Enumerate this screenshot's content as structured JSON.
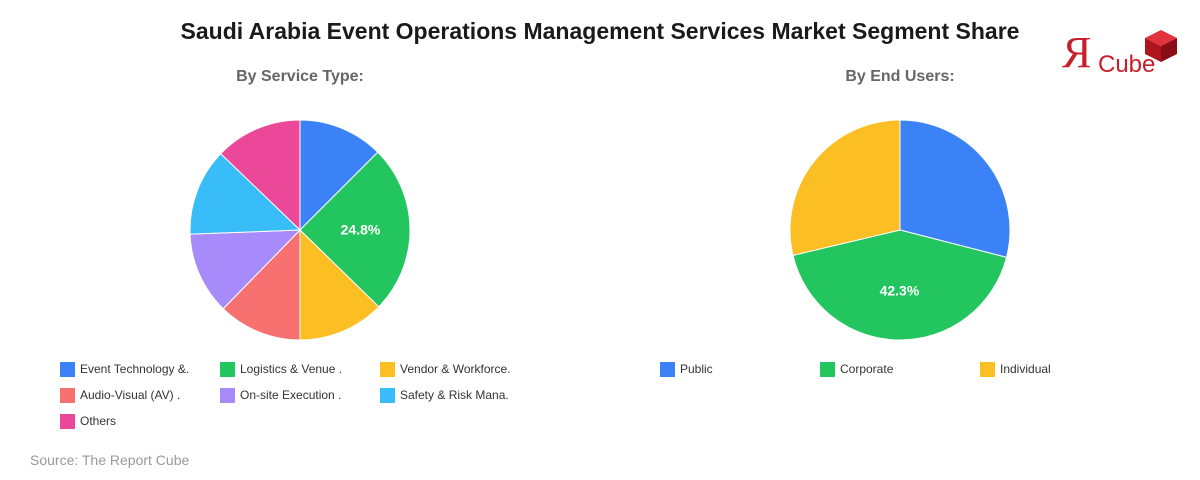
{
  "title": "Saudi Arabia Event Operations Management Services Market Segment Share",
  "logo": {
    "text_r": "R",
    "text_cube": "Cube",
    "color": "#c8202a",
    "icon": "red-cube-icon"
  },
  "source": "Source: The Report Cube",
  "chart_data": [
    {
      "type": "pie",
      "title": "By Service Type:",
      "labels": [
        "Event Technology &.",
        "Logistics & Venue .",
        "Vendor & Workforce.",
        "Audio-Visual (AV) .",
        "On-site Execution .",
        "Safety & Risk Mana.",
        "Others"
      ],
      "values": [
        12.5,
        24.8,
        12.7,
        12.3,
        12.1,
        12.8,
        12.8
      ],
      "colors": [
        "#3b82f6",
        "#22c55e",
        "#fbbf24",
        "#f87171",
        "#a78bfa",
        "#38bdf8",
        "#ec4899"
      ],
      "data_labels": [
        "",
        "24.8%",
        "",
        "",
        "",
        "",
        ""
      ],
      "legend_position": "bottom"
    },
    {
      "type": "pie",
      "title": "By End Users:",
      "labels": [
        "Public",
        "Corporate",
        "Individual"
      ],
      "values": [
        29.0,
        42.3,
        28.7
      ],
      "colors": [
        "#3b82f6",
        "#22c55e",
        "#fbbf24"
      ],
      "data_labels": [
        "",
        "42.3%",
        ""
      ],
      "legend_position": "bottom"
    }
  ]
}
